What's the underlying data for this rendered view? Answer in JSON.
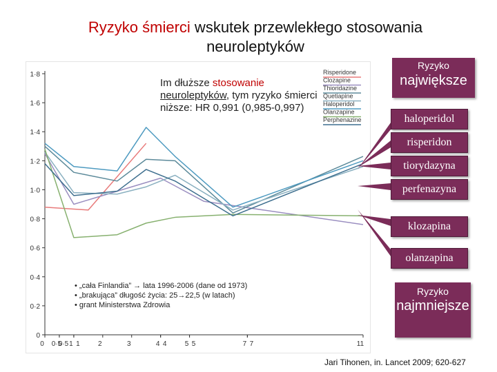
{
  "title": {
    "part1": "Ryzyko śmierci",
    "part2": " wskutek przewlekłego stosowania",
    "line2": "neuroleptyków"
  },
  "note": {
    "part1": "Im dłuższe ",
    "part2": "stosowanie",
    "part3": "neuroleptyków",
    "part4": ", tym ryzyko śmierci",
    "line3": "niższe: HR 0,991 (0,985-0,997)"
  },
  "facts": [
    "•  „cała Finlandia” → lata 1996-2006 (dane od 1973)",
    "•  „brakująca” długość życia: 25→22,5 (w latach)",
    "•  grant Ministerstwa Zdrowia"
  ],
  "right_panel": {
    "top_label": "Ryzyko",
    "top_big": "największe",
    "drugs": [
      "haloperidol",
      "risperidon",
      "tiorydazyna",
      "perfenazyna",
      "klozapina",
      "olanzapina"
    ],
    "bottom_label": "Ryzyko",
    "bottom_big": "najmniejsze"
  },
  "source": "Jari Tihonen, in. Lancet 2009; 620-627",
  "colors": {
    "box": "#7b2c59",
    "accent_red": "#c00000"
  },
  "chart_data": {
    "type": "line",
    "title": "",
    "xlabel": "",
    "ylabel": "",
    "ylim": [
      0,
      1.8
    ],
    "yticks": [
      0,
      0.2,
      0.4,
      0.6,
      0.8,
      1.0,
      1.2,
      1.4,
      1.6,
      1.8
    ],
    "xticks": [
      "0",
      "0·5",
      "0·5",
      "1",
      "1",
      "2",
      "3",
      "4",
      "4",
      "5",
      "5",
      "7",
      "7",
      "11"
    ],
    "xtick_pos": [
      0,
      0.5,
      0.5,
      1,
      1,
      2,
      3,
      4,
      4,
      5,
      5,
      7,
      7,
      11
    ],
    "legend": {
      "placement": "top-right",
      "entries": [
        "Risperidone",
        "Clozapine",
        "Thioridazine",
        "Quetiapine",
        "Haloperidol",
        "Olanzapine",
        "Perphenazine"
      ]
    },
    "series": [
      {
        "name": "Risperidone",
        "color": "#e87a7a",
        "x": [
          0,
          1.5,
          3.5
        ],
        "y": [
          0.88,
          0.86,
          1.32
        ]
      },
      {
        "name": "Clozapine",
        "color": "#9a8ec0",
        "x": [
          0,
          1,
          4,
          5.5,
          11
        ],
        "y": [
          1.25,
          0.9,
          1.08,
          0.92,
          0.76
        ]
      },
      {
        "name": "Thioridazine",
        "color": "#5c8a9a",
        "x": [
          0,
          1,
          2.5,
          3.5,
          4.5,
          6.5,
          11
        ],
        "y": [
          1.3,
          1.12,
          1.06,
          1.21,
          1.2,
          0.84,
          1.23
        ]
      },
      {
        "name": "Quetiapine",
        "color": "#8ab0c0",
        "x": [
          0,
          1,
          2.5,
          3.5,
          4.5,
          6.5,
          11
        ],
        "y": [
          1.26,
          0.98,
          0.97,
          1.02,
          1.1,
          0.86,
          1.16
        ]
      },
      {
        "name": "Haloperidol",
        "color": "#4d9ac0",
        "x": [
          0,
          1,
          2.5,
          3.5,
          4.5,
          6.5,
          11
        ],
        "y": [
          1.32,
          1.16,
          1.13,
          1.43,
          1.23,
          0.88,
          1.2
        ]
      },
      {
        "name": "Olanzapine",
        "color": "#86b06e",
        "x": [
          0,
          1,
          2.5,
          3.5,
          4.5,
          6.5,
          11
        ],
        "y": [
          1.28,
          0.67,
          0.69,
          0.77,
          0.81,
          0.83,
          0.82
        ]
      },
      {
        "name": "Perphenazine",
        "color": "#3d6e8e",
        "x": [
          0,
          1,
          2.5,
          3.5,
          4.5,
          6.5,
          11
        ],
        "y": [
          1.18,
          0.96,
          0.99,
          1.14,
          1.06,
          0.82,
          1.18
        ]
      }
    ]
  }
}
